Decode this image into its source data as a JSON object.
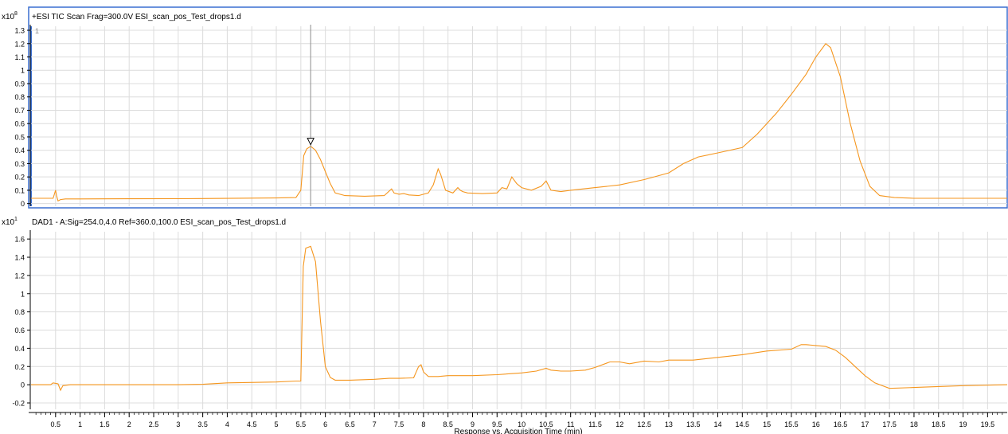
{
  "colors": {
    "trace": "#f5961e",
    "panel_border": "#3a6fd0",
    "grid": "#dcdcdc",
    "axis": "#000000",
    "cursor": "#8c8c8c"
  },
  "chart_data": [
    {
      "type": "line",
      "panel": "top",
      "title": "+ESI TIC Scan Frag=300.0V ESI_scan_pos_Test_drops1.d",
      "scale_label": "x10",
      "scale_exponent": "8",
      "trace_number": "1",
      "ylim": [
        -0.02,
        1.33
      ],
      "xlim": [
        0.0,
        19.9
      ],
      "yticks": [
        0,
        0.1,
        0.2,
        0.3,
        0.4,
        0.5,
        0.6,
        0.7,
        0.8,
        0.9,
        1,
        1.1,
        1.2,
        1.3
      ],
      "ytick_labels": [
        "0",
        "0.1",
        "0.2",
        "0.3",
        "0.4",
        "0.5",
        "0.6",
        "0.7",
        "0.8",
        "0.9",
        "1",
        "1.1",
        "1.2",
        "1.3"
      ],
      "selected_x": 5.7,
      "series": [
        {
          "x": [
            0.0,
            0.45,
            0.5,
            0.52,
            0.55,
            0.6,
            0.7,
            1.0,
            2.0,
            3.0,
            4.0,
            5.0,
            5.4,
            5.5,
            5.56,
            5.62,
            5.7,
            5.8,
            5.9,
            6.0,
            6.1,
            6.2,
            6.4,
            6.8,
            7.2,
            7.35,
            7.4,
            7.5,
            7.6,
            7.7,
            7.9,
            8.1,
            8.2,
            8.3,
            8.35,
            8.45,
            8.6,
            8.7,
            8.75,
            8.8,
            8.9,
            9.2,
            9.5,
            9.6,
            9.7,
            9.8,
            9.9,
            10.0,
            10.2,
            10.4,
            10.5,
            10.6,
            10.8,
            11.0,
            11.5,
            12.0,
            12.5,
            12.8,
            13.0,
            13.3,
            13.6,
            14.0,
            14.5,
            14.8,
            15.0,
            15.2,
            15.5,
            15.8,
            16.0,
            16.2,
            16.3,
            16.5,
            16.7,
            16.9,
            17.1,
            17.3,
            17.6,
            18.0,
            19.0,
            19.9
          ],
          "y": [
            0.04,
            0.04,
            0.1,
            0.06,
            0.02,
            0.03,
            0.035,
            0.035,
            0.036,
            0.037,
            0.039,
            0.042,
            0.045,
            0.1,
            0.36,
            0.41,
            0.43,
            0.4,
            0.33,
            0.24,
            0.15,
            0.08,
            0.06,
            0.055,
            0.06,
            0.11,
            0.08,
            0.07,
            0.075,
            0.065,
            0.06,
            0.08,
            0.14,
            0.26,
            0.22,
            0.1,
            0.08,
            0.12,
            0.1,
            0.09,
            0.08,
            0.075,
            0.08,
            0.12,
            0.11,
            0.2,
            0.15,
            0.12,
            0.1,
            0.13,
            0.17,
            0.1,
            0.09,
            0.1,
            0.12,
            0.14,
            0.18,
            0.21,
            0.23,
            0.3,
            0.35,
            0.38,
            0.42,
            0.52,
            0.6,
            0.68,
            0.82,
            0.97,
            1.1,
            1.2,
            1.17,
            0.95,
            0.6,
            0.32,
            0.13,
            0.06,
            0.045,
            0.04,
            0.04,
            0.04
          ]
        }
      ]
    },
    {
      "type": "line",
      "panel": "bottom",
      "title": "DAD1 - A:Sig=254.0,4.0  Ref=360.0,100.0 ESI_scan_pos_Test_drops1.d",
      "scale_label": "x10",
      "scale_exponent": "1",
      "ylim": [
        -0.27,
        1.68
      ],
      "xlim": [
        0.0,
        19.9
      ],
      "yticks": [
        -0.2,
        0,
        0.2,
        0.4,
        0.6,
        0.8,
        1,
        1.2,
        1.4,
        1.6
      ],
      "ytick_labels": [
        "-0.2",
        "0",
        "0.2",
        "0.4",
        "0.6",
        "0.8",
        "1",
        "1.2",
        "1.4",
        "1.6"
      ],
      "xlabel": "Response vs. Acquisition Time (min)",
      "xticks": [
        0.5,
        1,
        1.5,
        2,
        2.5,
        3,
        3.5,
        4,
        4.5,
        5,
        5.5,
        6,
        6.5,
        7,
        7.5,
        8,
        8.5,
        9,
        9.5,
        10,
        10.5,
        11,
        11.5,
        12,
        12.5,
        13,
        13.5,
        14,
        14.5,
        15,
        15.5,
        16,
        16.5,
        17,
        17.5,
        18,
        18.5,
        19,
        19.5
      ],
      "xtick_labels": [
        "0.5",
        "1",
        "1.5",
        "2",
        "2.5",
        "3",
        "3.5",
        "4",
        "4.5",
        "5",
        "5.5",
        "6",
        "6.5",
        "7",
        "7.5",
        "8",
        "8.5",
        "9",
        "9.5",
        "10",
        "10.5",
        "11",
        "11.5",
        "12",
        "12.5",
        "13",
        "13.5",
        "14",
        "14.5",
        "15",
        "15.5",
        "16",
        "16.5",
        "17",
        "17.5",
        "18",
        "18.5",
        "19",
        "19.5"
      ],
      "series": [
        {
          "x": [
            0.0,
            0.4,
            0.45,
            0.55,
            0.6,
            0.65,
            0.8,
            1.0,
            2.0,
            3.0,
            3.5,
            4.0,
            5.0,
            5.4,
            5.5,
            5.55,
            5.6,
            5.7,
            5.8,
            5.9,
            6.0,
            6.1,
            6.2,
            6.5,
            7.0,
            7.3,
            7.5,
            7.8,
            7.9,
            7.95,
            8.0,
            8.1,
            8.3,
            8.5,
            9.0,
            9.5,
            10.0,
            10.3,
            10.5,
            10.6,
            10.8,
            11.0,
            11.3,
            11.5,
            11.8,
            12.0,
            12.2,
            12.5,
            12.8,
            13.0,
            13.5,
            14.0,
            14.5,
            15.0,
            15.5,
            15.7,
            15.8,
            16.0,
            16.2,
            16.4,
            16.6,
            16.8,
            17.0,
            17.2,
            17.5,
            18.0,
            19.0,
            19.9
          ],
          "y": [
            0.0,
            0.0,
            0.02,
            0.01,
            -0.06,
            -0.01,
            0.0,
            0.0,
            0.0,
            0.0,
            0.005,
            0.02,
            0.03,
            0.04,
            0.04,
            1.3,
            1.5,
            1.52,
            1.35,
            0.7,
            0.2,
            0.08,
            0.05,
            0.05,
            0.06,
            0.07,
            0.07,
            0.075,
            0.2,
            0.22,
            0.14,
            0.09,
            0.09,
            0.1,
            0.1,
            0.11,
            0.13,
            0.15,
            0.18,
            0.16,
            0.15,
            0.15,
            0.16,
            0.19,
            0.25,
            0.25,
            0.23,
            0.26,
            0.25,
            0.27,
            0.27,
            0.3,
            0.33,
            0.37,
            0.39,
            0.44,
            0.44,
            0.43,
            0.42,
            0.38,
            0.3,
            0.2,
            0.1,
            0.02,
            -0.04,
            -0.03,
            -0.01,
            0.0
          ]
        }
      ]
    }
  ]
}
